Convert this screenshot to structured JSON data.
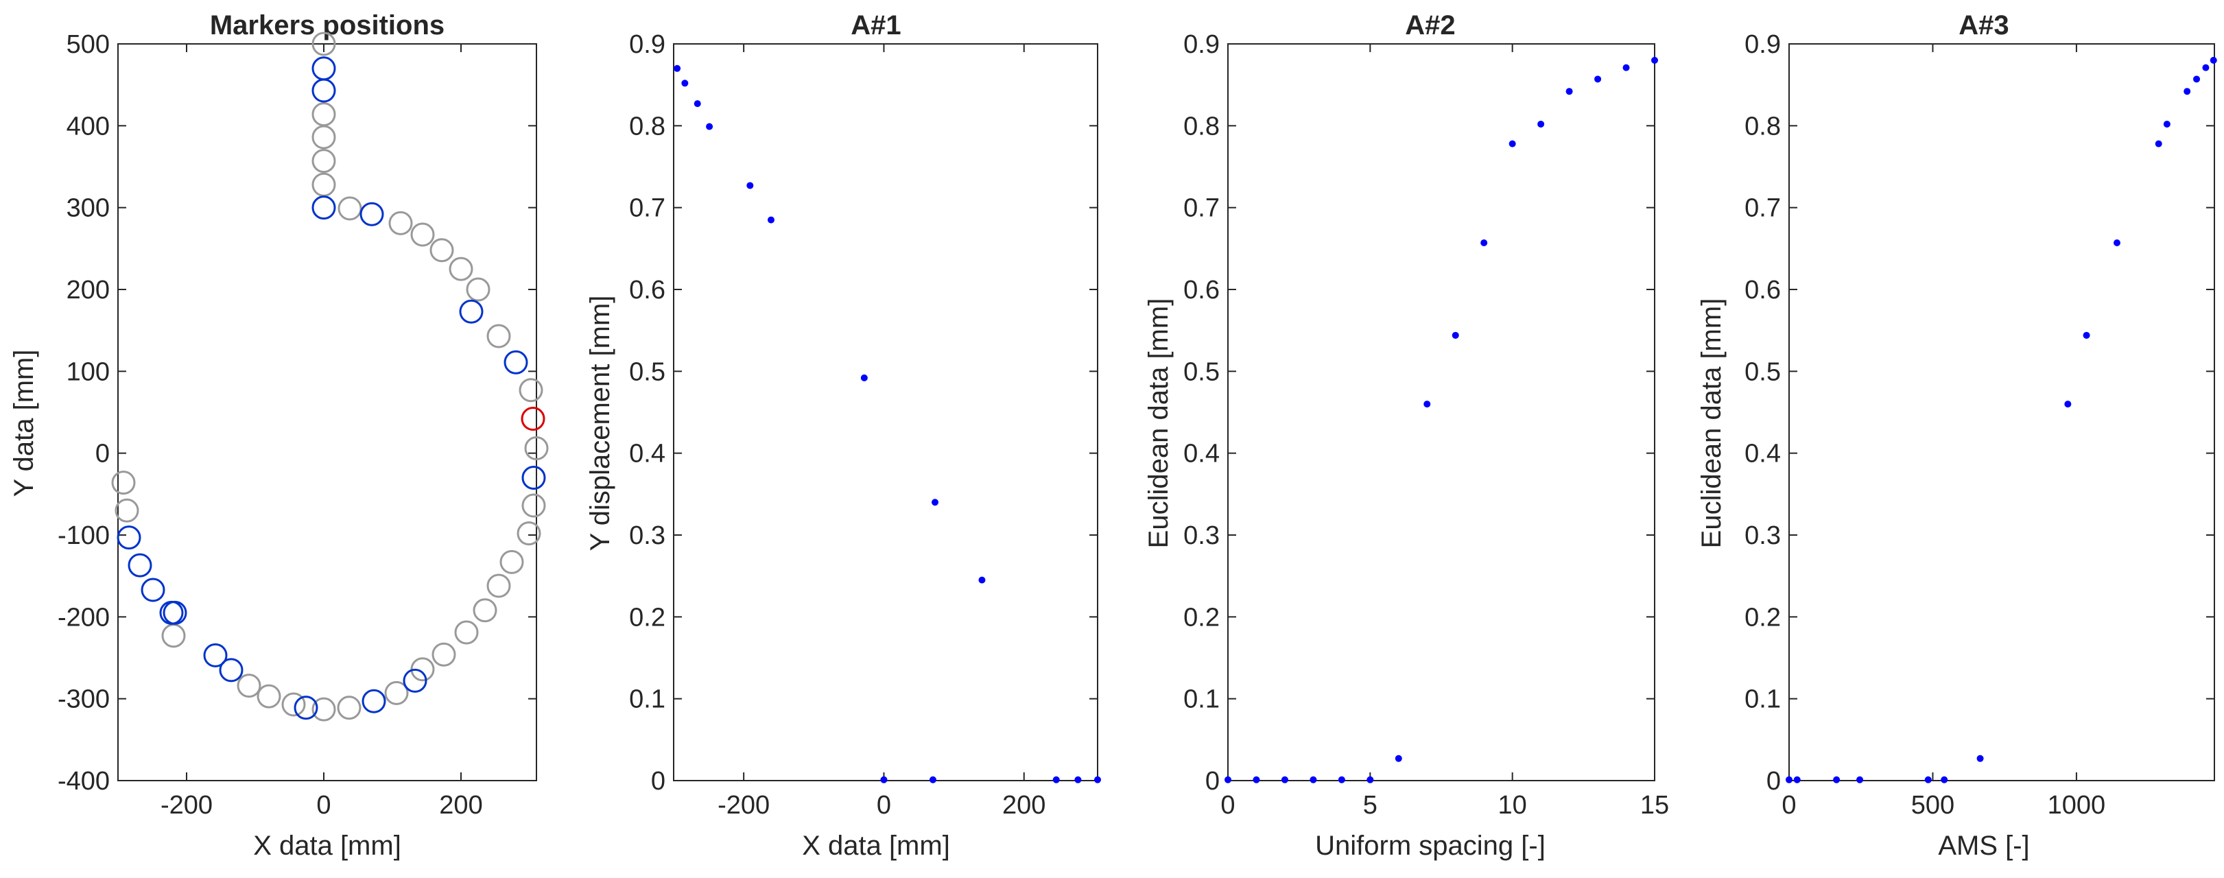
{
  "colors": {
    "axis": "#262626",
    "blue": "#0000ff",
    "marker_blue": "#0033cc",
    "marker_gray": "#999999",
    "marker_red": "#dd0000"
  },
  "chart_data": [
    {
      "type": "scatter",
      "title": "Markers positions",
      "xlabel": "X data [mm]",
      "ylabel": "Y data  [mm]",
      "xlim": [
        -300,
        310
      ],
      "ylim": [
        -400,
        500
      ],
      "xticks": [
        -200,
        0,
        200
      ],
      "yticks": [
        -400,
        -300,
        -200,
        -100,
        0,
        100,
        200,
        300,
        400,
        500
      ],
      "series": [
        {
          "color": "gray",
          "points": [
            [
              0,
              500
            ],
            [
              0,
              414
            ],
            [
              0,
              386
            ],
            [
              0,
              357
            ],
            [
              0,
              328
            ],
            [
              38,
              299
            ],
            [
              112,
              281
            ],
            [
              144,
              267
            ],
            [
              172,
              248
            ],
            [
              200,
              225
            ],
            [
              225,
              200
            ],
            [
              255,
              143
            ],
            [
              302,
              77
            ],
            [
              310,
              6
            ],
            [
              306,
              -64
            ],
            [
              299,
              -98
            ],
            [
              274,
              -133
            ],
            [
              255,
              -162
            ],
            [
              235,
              -192
            ],
            [
              208,
              -219
            ],
            [
              175,
              -246
            ],
            [
              144,
              -264
            ],
            [
              106,
              -293
            ],
            [
              37,
              -311
            ],
            [
              0,
              -313
            ],
            [
              -44,
              -307
            ],
            [
              -80,
              -297
            ],
            [
              -109,
              -284
            ],
            [
              -219,
              -223
            ],
            [
              -287,
              -70
            ],
            [
              -292,
              -36
            ]
          ]
        },
        {
          "color": "blue",
          "points": [
            [
              0,
              470
            ],
            [
              0,
              443
            ],
            [
              0,
              300
            ],
            [
              70,
              292
            ],
            [
              215,
              173
            ],
            [
              280,
              111
            ],
            [
              306,
              -30
            ],
            [
              133,
              -278
            ],
            [
              73,
              -303
            ],
            [
              -26,
              -311
            ],
            [
              -135,
              -265
            ],
            [
              -158,
              -247
            ],
            [
              -217,
              -195
            ],
            [
              -222,
              -195
            ],
            [
              -249,
              -167
            ],
            [
              -268,
              -137
            ],
            [
              -284,
              -103
            ]
          ]
        },
        {
          "color": "red",
          "points": [
            [
              305,
              42
            ]
          ]
        }
      ]
    },
    {
      "type": "scatter",
      "title": "A#1",
      "xlabel": "X data [mm]",
      "ylabel": "Y displacement  [mm]",
      "xlim": [
        -300,
        305
      ],
      "ylim": [
        0,
        0.9
      ],
      "xticks": [
        -200,
        0,
        200
      ],
      "yticks": [
        0,
        0.1,
        0.2,
        0.3,
        0.4,
        0.5,
        0.6,
        0.7,
        0.8,
        0.9
      ],
      "series": [
        {
          "color": "blue",
          "points": [
            [
              -295,
              0.87
            ],
            [
              -284,
              0.852
            ],
            [
              -266,
              0.827
            ],
            [
              -249,
              0.799
            ],
            [
              -191,
              0.727
            ],
            [
              -161,
              0.685
            ],
            [
              -28,
              0.492
            ],
            [
              0,
              0.001
            ],
            [
              70,
              0.001
            ],
            [
              73,
              0.34
            ],
            [
              140,
              0.245
            ],
            [
              246,
              0.001
            ],
            [
              277,
              0.001
            ],
            [
              305,
              0.001
            ]
          ]
        }
      ]
    },
    {
      "type": "scatter",
      "title": "A#2",
      "xlabel": "Uniform spacing [-]",
      "ylabel": "Euclidean data  [mm]",
      "xlim": [
        0,
        15
      ],
      "ylim": [
        0,
        0.9
      ],
      "xticks": [
        0,
        5,
        10,
        15
      ],
      "yticks": [
        0,
        0.1,
        0.2,
        0.3,
        0.4,
        0.5,
        0.6,
        0.7,
        0.8,
        0.9
      ],
      "series": [
        {
          "color": "blue",
          "points": [
            [
              0,
              0.001
            ],
            [
              1,
              0.001
            ],
            [
              2,
              0.001
            ],
            [
              3,
              0.001
            ],
            [
              4,
              0.001
            ],
            [
              5,
              0.001
            ],
            [
              6,
              0.027
            ],
            [
              7,
              0.46
            ],
            [
              8,
              0.544
            ],
            [
              9,
              0.657
            ],
            [
              10,
              0.778
            ],
            [
              11,
              0.802
            ],
            [
              12,
              0.842
            ],
            [
              13,
              0.857
            ],
            [
              14,
              0.871
            ],
            [
              15,
              0.88
            ]
          ]
        }
      ]
    },
    {
      "type": "scatter",
      "title": "A#3",
      "xlabel": "AMS [-]",
      "ylabel": "Euclidean data  [mm]",
      "xlim": [
        0,
        1480
      ],
      "ylim": [
        0,
        0.9
      ],
      "xticks": [
        0,
        500,
        1000
      ],
      "yticks": [
        0,
        0.1,
        0.2,
        0.3,
        0.4,
        0.5,
        0.6,
        0.7,
        0.8,
        0.9
      ],
      "series": [
        {
          "color": "blue",
          "points": [
            [
              0,
              0.001
            ],
            [
              28,
              0.001
            ],
            [
              165,
              0.001
            ],
            [
              246,
              0.001
            ],
            [
              484,
              0.001
            ],
            [
              540,
              0.001
            ],
            [
              665,
              0.027
            ],
            [
              970,
              0.46
            ],
            [
              1035,
              0.544
            ],
            [
              1141,
              0.657
            ],
            [
              1286,
              0.778
            ],
            [
              1315,
              0.802
            ],
            [
              1385,
              0.842
            ],
            [
              1418,
              0.857
            ],
            [
              1450,
              0.871
            ],
            [
              1477,
              0.88
            ]
          ]
        }
      ]
    }
  ]
}
